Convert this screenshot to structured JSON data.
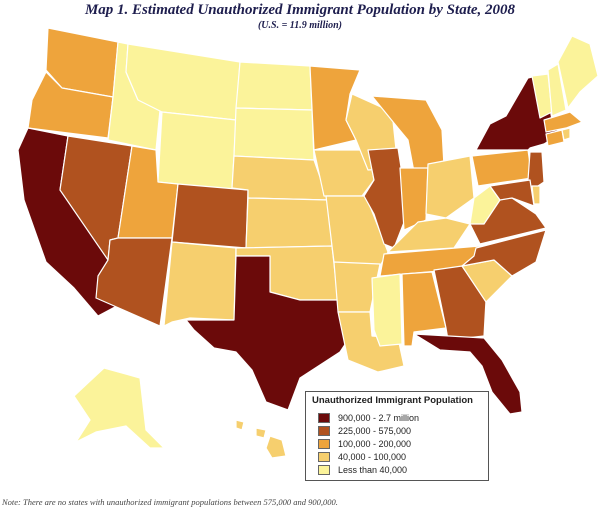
{
  "title": "Map 1. Estimated Unauthorized Immigrant Population by State, 2008",
  "subtitle": "(U.S. = 11.9 million)",
  "legend": {
    "title": "Unauthorized Immigrant Population",
    "items": [
      {
        "label": "900,000 - 2.7 million",
        "color": "#6b0a0a"
      },
      {
        "label": "225,000 - 575,000",
        "color": "#b0521f"
      },
      {
        "label": "100,000 - 200,000",
        "color": "#eea43c"
      },
      {
        "label": "40,000 - 100,000",
        "color": "#f6cf6e"
      },
      {
        "label": "Less than 40,000",
        "color": "#fbf39a"
      }
    ]
  },
  "note": "Note: There are no states with unauthorized immigrant populations between 575,000 and 900,000.",
  "states": {
    "WA": 2,
    "OR": 2,
    "CA": 0,
    "NV": 1,
    "ID": 4,
    "MT": 4,
    "WY": 4,
    "UT": 2,
    "AZ": 1,
    "CO": 1,
    "NM": 3,
    "ND": 4,
    "SD": 4,
    "NE": 3,
    "KS": 3,
    "OK": 3,
    "TX": 0,
    "MN": 2,
    "IA": 3,
    "MO": 3,
    "AR": 3,
    "LA": 3,
    "WI": 3,
    "IL": 1,
    "MI": 2,
    "IN": 2,
    "OH": 3,
    "KY": 3,
    "TN": 2,
    "MS": 4,
    "AL": 2,
    "GA": 1,
    "FL": 0,
    "SC": 3,
    "NC": 1,
    "VA": 1,
    "WV": 4,
    "PA": 2,
    "NY": 0,
    "NJ": 1,
    "MD": 1,
    "DE": 3,
    "CT": 2,
    "MA": 2,
    "RI": 3,
    "VT": 4,
    "NH": 4,
    "ME": 4,
    "AK": 4,
    "HI": 3
  }
}
